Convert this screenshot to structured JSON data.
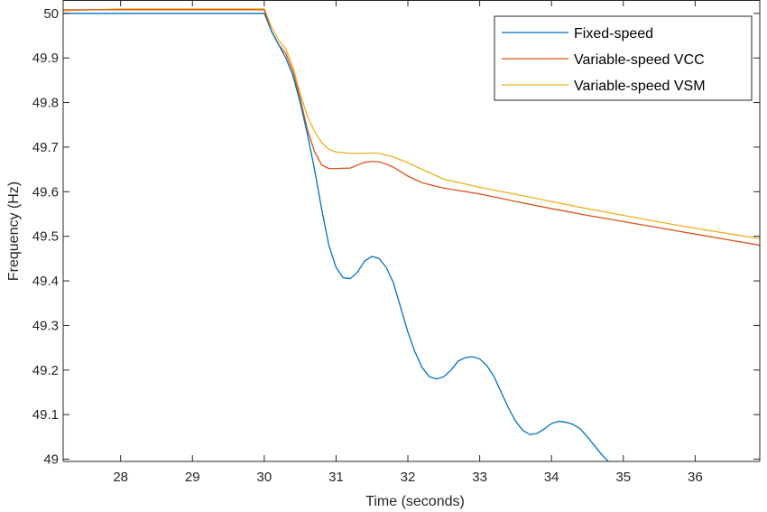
{
  "chart_data": {
    "type": "line",
    "title": "",
    "xlabel": "Time (seconds)",
    "ylabel": "Frequency (Hz)",
    "xlim": [
      27.2,
      36.9
    ],
    "ylim": [
      48.995,
      50.03
    ],
    "xticks": [
      28,
      29,
      30,
      31,
      32,
      33,
      34,
      35,
      36
    ],
    "yticks": [
      49,
      49.1,
      49.2,
      49.3,
      49.4,
      49.5,
      49.6,
      49.7,
      49.8,
      49.9,
      50
    ],
    "xtick_labels": [
      "28",
      "29",
      "30",
      "31",
      "32",
      "33",
      "34",
      "35",
      "36"
    ],
    "ytick_labels": [
      "49",
      "49.1",
      "49.2",
      "49.3",
      "49.4",
      "49.5",
      "49.6",
      "49.7",
      "49.8",
      "49.9",
      "50"
    ],
    "grid": false,
    "legend_position": "top-right",
    "series": [
      {
        "name": "Fixed-speed",
        "color": "#0072BD",
        "points": [
          [
            27.2,
            50.0
          ],
          [
            30.0,
            50.0
          ],
          [
            30.1,
            49.96
          ],
          [
            30.2,
            49.93
          ],
          [
            30.3,
            49.9
          ],
          [
            30.4,
            49.86
          ],
          [
            30.5,
            49.8
          ],
          [
            30.6,
            49.73
          ],
          [
            30.7,
            49.65
          ],
          [
            30.8,
            49.56
          ],
          [
            30.9,
            49.48
          ],
          [
            31.0,
            49.43
          ],
          [
            31.1,
            49.407
          ],
          [
            31.2,
            49.405
          ],
          [
            31.3,
            49.42
          ],
          [
            31.4,
            49.445
          ],
          [
            31.5,
            49.455
          ],
          [
            31.6,
            49.45
          ],
          [
            31.7,
            49.43
          ],
          [
            31.8,
            49.395
          ],
          [
            31.9,
            49.34
          ],
          [
            32.0,
            49.285
          ],
          [
            32.1,
            49.24
          ],
          [
            32.2,
            49.205
          ],
          [
            32.3,
            49.185
          ],
          [
            32.4,
            49.18
          ],
          [
            32.5,
            49.185
          ],
          [
            32.6,
            49.2
          ],
          [
            32.7,
            49.22
          ],
          [
            32.8,
            49.228
          ],
          [
            32.9,
            49.23
          ],
          [
            33.0,
            49.225
          ],
          [
            33.1,
            49.21
          ],
          [
            33.2,
            49.185
          ],
          [
            33.3,
            49.15
          ],
          [
            33.4,
            49.115
          ],
          [
            33.5,
            49.085
          ],
          [
            33.6,
            49.065
          ],
          [
            33.7,
            49.055
          ],
          [
            33.8,
            49.058
          ],
          [
            33.9,
            49.068
          ],
          [
            34.0,
            49.08
          ],
          [
            34.1,
            49.085
          ],
          [
            34.2,
            49.083
          ],
          [
            34.3,
            49.078
          ],
          [
            34.4,
            49.068
          ],
          [
            34.5,
            49.05
          ],
          [
            34.6,
            49.03
          ],
          [
            34.7,
            49.01
          ],
          [
            34.82,
            48.99
          ]
        ]
      },
      {
        "name": "Variable-speed VCC",
        "color": "#D95319",
        "points": [
          [
            27.2,
            50.008
          ],
          [
            28.0,
            50.008
          ],
          [
            30.0,
            50.008
          ],
          [
            30.1,
            49.96
          ],
          [
            30.2,
            49.93
          ],
          [
            30.3,
            49.91
          ],
          [
            30.4,
            49.87
          ],
          [
            30.5,
            49.81
          ],
          [
            30.6,
            49.74
          ],
          [
            30.7,
            49.69
          ],
          [
            30.8,
            49.66
          ],
          [
            30.9,
            49.652
          ],
          [
            31.0,
            49.652
          ],
          [
            31.2,
            49.653
          ],
          [
            31.3,
            49.66
          ],
          [
            31.4,
            49.666
          ],
          [
            31.5,
            49.668
          ],
          [
            31.6,
            49.667
          ],
          [
            31.7,
            49.662
          ],
          [
            31.8,
            49.655
          ],
          [
            32.0,
            49.635
          ],
          [
            32.2,
            49.62
          ],
          [
            32.5,
            49.608
          ],
          [
            33.0,
            49.595
          ],
          [
            33.5,
            49.578
          ],
          [
            34.0,
            49.562
          ],
          [
            34.5,
            49.547
          ],
          [
            35.0,
            49.533
          ],
          [
            35.5,
            49.519
          ],
          [
            36.0,
            49.505
          ],
          [
            36.5,
            49.491
          ],
          [
            36.9,
            49.48
          ]
        ]
      },
      {
        "name": "Variable-speed VSM",
        "color": "#EDB120",
        "points": [
          [
            27.2,
            50.006
          ],
          [
            28.0,
            50.01
          ],
          [
            30.0,
            50.01
          ],
          [
            30.1,
            49.97
          ],
          [
            30.2,
            49.94
          ],
          [
            30.3,
            49.92
          ],
          [
            30.4,
            49.88
          ],
          [
            30.5,
            49.82
          ],
          [
            30.6,
            49.77
          ],
          [
            30.7,
            49.735
          ],
          [
            30.8,
            49.71
          ],
          [
            30.9,
            49.695
          ],
          [
            31.0,
            49.689
          ],
          [
            31.2,
            49.686
          ],
          [
            31.4,
            49.686
          ],
          [
            31.5,
            49.687
          ],
          [
            31.6,
            49.686
          ],
          [
            31.8,
            49.678
          ],
          [
            32.0,
            49.665
          ],
          [
            32.2,
            49.65
          ],
          [
            32.5,
            49.628
          ],
          [
            33.0,
            49.61
          ],
          [
            33.5,
            49.594
          ],
          [
            34.0,
            49.578
          ],
          [
            34.5,
            49.562
          ],
          [
            35.0,
            49.547
          ],
          [
            35.5,
            49.532
          ],
          [
            36.0,
            49.518
          ],
          [
            36.5,
            49.505
          ],
          [
            36.9,
            49.495
          ]
        ]
      }
    ]
  }
}
